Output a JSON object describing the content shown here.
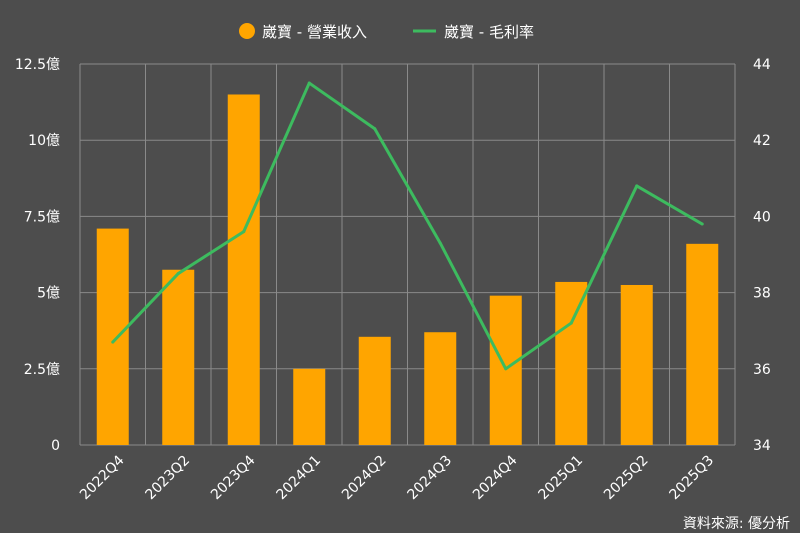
{
  "chart_data": {
    "type": "bar",
    "categories": [
      "2022Q4",
      "2023Q2",
      "2023Q4",
      "2024Q1",
      "2024Q2",
      "2024Q3",
      "2024Q4",
      "2025Q1",
      "2025Q2",
      "2025Q3"
    ],
    "series": [
      {
        "name": "崴寶 - 營業收入",
        "type": "bar",
        "axis": "left",
        "color": "#ffa500",
        "values": [
          7.1,
          5.75,
          11.5,
          2.5,
          3.55,
          3.7,
          4.9,
          5.35,
          5.25,
          6.6
        ]
      },
      {
        "name": "崴寶 - 毛利率",
        "type": "line",
        "axis": "right",
        "color": "#3dbb5f",
        "values": [
          36.7,
          38.5,
          39.6,
          43.5,
          42.3,
          39.3,
          36.0,
          37.2,
          40.8,
          39.8
        ]
      }
    ],
    "y_left": {
      "lim": [
        0,
        12.5
      ],
      "ticks": [
        0,
        2.5,
        5,
        7.5,
        10,
        12.5
      ],
      "tick_labels": [
        "0",
        "2.5億",
        "5億",
        "7.5億",
        "10億",
        "12.5億"
      ]
    },
    "y_right": {
      "lim": [
        34,
        44
      ],
      "ticks": [
        34,
        36,
        38,
        40,
        42,
        44
      ],
      "tick_labels": [
        "34",
        "36",
        "38",
        "40",
        "42",
        "44"
      ]
    },
    "grid": true,
    "legend_position": "top-center",
    "source": "資料來源: 優分析"
  }
}
